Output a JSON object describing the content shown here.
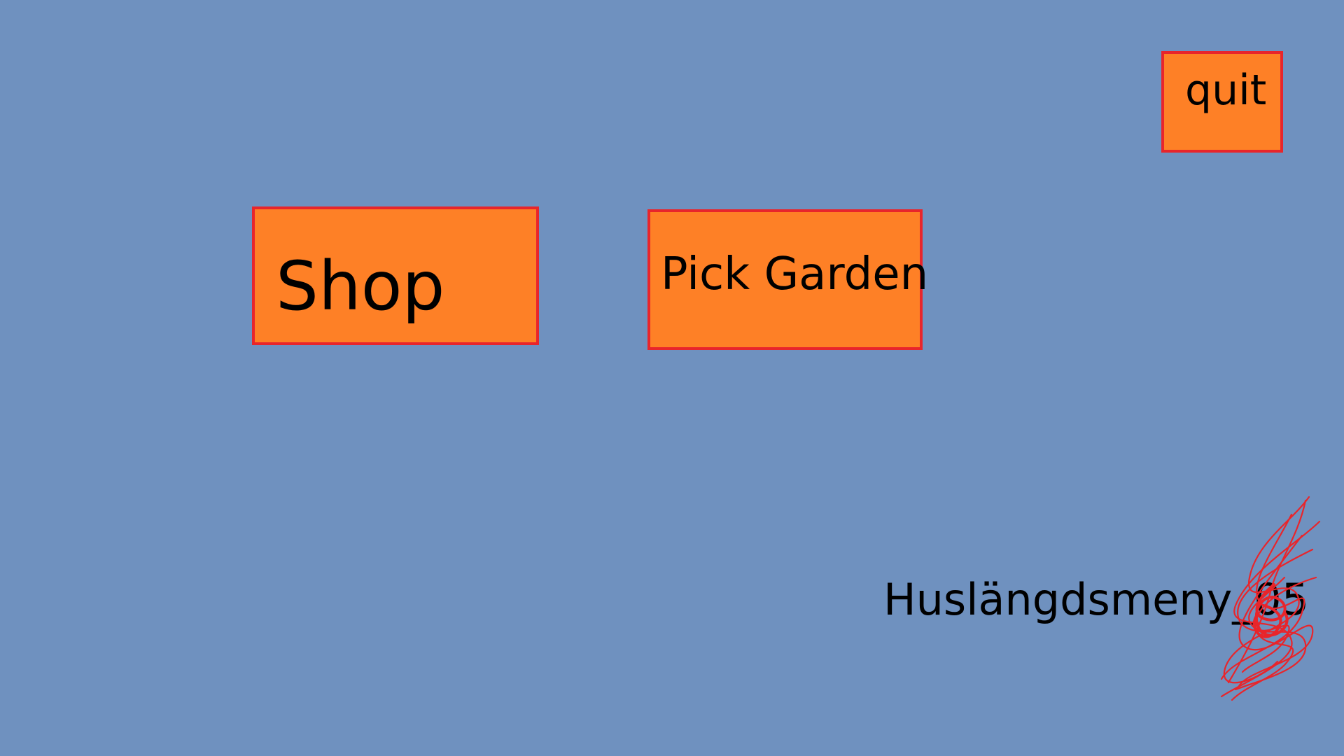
{
  "menu": {
    "quit_label": "quit",
    "shop_label": "Shop",
    "pick_garden_label": "Pick Garden"
  },
  "caption": {
    "text": "Huslängdsmeny_05"
  },
  "colors": {
    "background": "#6f91bf",
    "button_fill": "#fe8026",
    "button_border": "#e8252b",
    "scribble": "#e8252b"
  }
}
